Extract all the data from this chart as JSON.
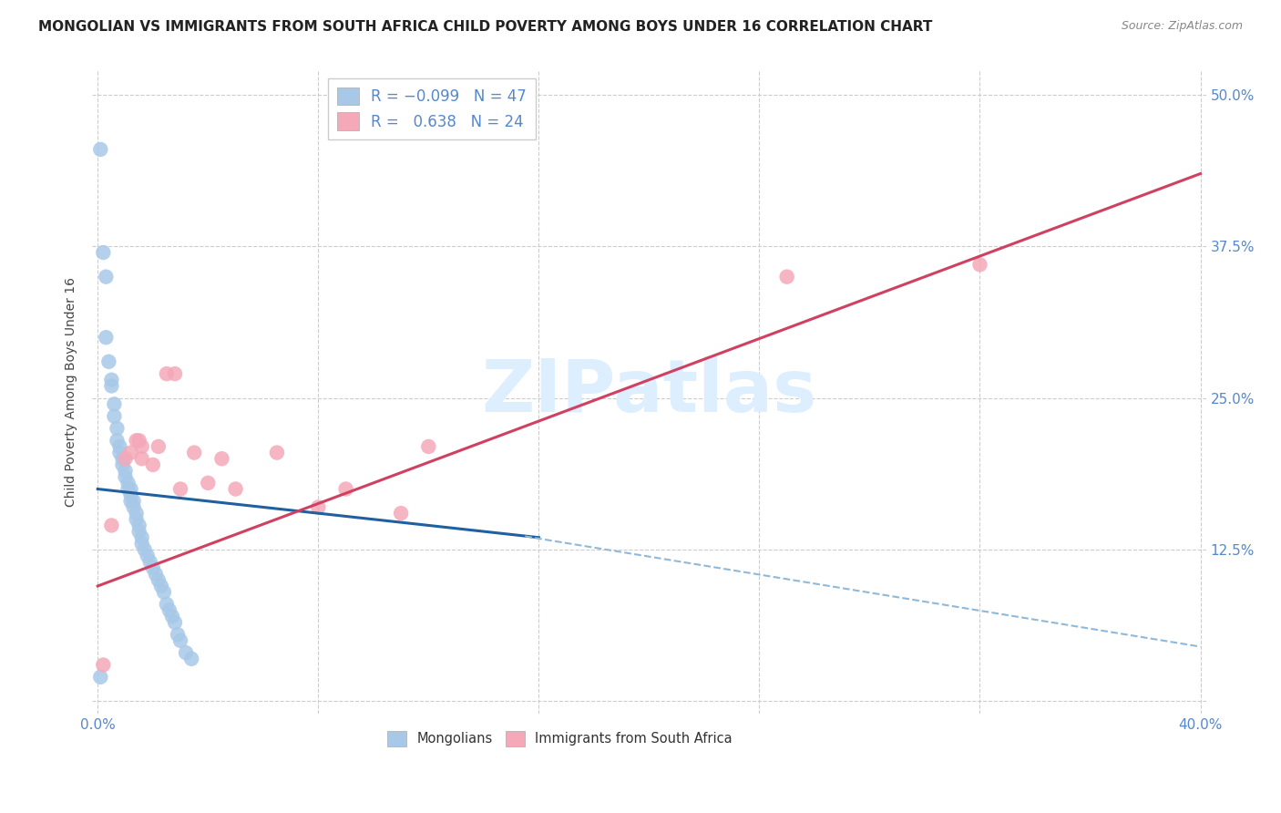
{
  "title": "MONGOLIAN VS IMMIGRANTS FROM SOUTH AFRICA CHILD POVERTY AMONG BOYS UNDER 16 CORRELATION CHART",
  "source": "Source: ZipAtlas.com",
  "ylabel": "Child Poverty Among Boys Under 16",
  "xlabel": "",
  "xlim": [
    -0.002,
    0.402
  ],
  "ylim": [
    -0.01,
    0.52
  ],
  "xticks": [
    0.0,
    0.08,
    0.16,
    0.24,
    0.32,
    0.4
  ],
  "xticklabels": [
    "0.0%",
    "",
    "",
    "",
    "",
    "40.0%"
  ],
  "yticks": [
    0.0,
    0.125,
    0.25,
    0.375,
    0.5
  ],
  "yticklabels": [
    "",
    "12.5%",
    "25.0%",
    "37.5%",
    "50.0%"
  ],
  "mongolian_R": -0.099,
  "mongolian_N": 47,
  "sa_R": 0.638,
  "sa_N": 24,
  "mongolian_color": "#a8c8e8",
  "sa_color": "#f4a8b8",
  "mongolian_line_color": "#2060a0",
  "sa_line_color": "#d04060",
  "dashed_line_color": "#90b8d8",
  "watermark": "ZIPatlas",
  "watermark_color": "#ddeeff",
  "background_color": "#ffffff",
  "grid_color": "#cccccc",
  "title_color": "#222222",
  "source_color": "#888888",
  "tick_color": "#5588cc",
  "mongolian_x": [
    0.001,
    0.002,
    0.003,
    0.003,
    0.004,
    0.005,
    0.005,
    0.006,
    0.006,
    0.007,
    0.007,
    0.008,
    0.008,
    0.009,
    0.009,
    0.01,
    0.01,
    0.011,
    0.011,
    0.012,
    0.012,
    0.012,
    0.013,
    0.013,
    0.014,
    0.014,
    0.015,
    0.015,
    0.016,
    0.016,
    0.017,
    0.018,
    0.019,
    0.02,
    0.021,
    0.022,
    0.023,
    0.024,
    0.025,
    0.026,
    0.027,
    0.028,
    0.029,
    0.03,
    0.032,
    0.034,
    0.001
  ],
  "mongolian_y": [
    0.455,
    0.37,
    0.35,
    0.3,
    0.28,
    0.265,
    0.26,
    0.245,
    0.235,
    0.225,
    0.215,
    0.21,
    0.205,
    0.2,
    0.195,
    0.19,
    0.185,
    0.18,
    0.175,
    0.175,
    0.17,
    0.165,
    0.165,
    0.16,
    0.155,
    0.15,
    0.145,
    0.14,
    0.135,
    0.13,
    0.125,
    0.12,
    0.115,
    0.11,
    0.105,
    0.1,
    0.095,
    0.09,
    0.08,
    0.075,
    0.07,
    0.065,
    0.055,
    0.05,
    0.04,
    0.035,
    0.02
  ],
  "sa_x": [
    0.002,
    0.005,
    0.01,
    0.012,
    0.014,
    0.015,
    0.016,
    0.016,
    0.02,
    0.022,
    0.025,
    0.028,
    0.03,
    0.035,
    0.04,
    0.045,
    0.05,
    0.065,
    0.08,
    0.09,
    0.11,
    0.12,
    0.25,
    0.32
  ],
  "sa_y": [
    0.03,
    0.145,
    0.2,
    0.205,
    0.215,
    0.215,
    0.21,
    0.2,
    0.195,
    0.21,
    0.27,
    0.27,
    0.175,
    0.205,
    0.18,
    0.2,
    0.175,
    0.205,
    0.16,
    0.175,
    0.155,
    0.21,
    0.35,
    0.36
  ],
  "blue_line_x0": 0.0,
  "blue_line_y0": 0.175,
  "blue_line_x1": 0.16,
  "blue_line_y1": 0.135,
  "dashed_line_x0": 0.155,
  "dashed_line_y0": 0.136,
  "dashed_line_x1": 0.4,
  "dashed_line_y1": 0.045,
  "pink_line_x0": 0.0,
  "pink_line_y0": 0.095,
  "pink_line_x1": 0.4,
  "pink_line_y1": 0.435
}
